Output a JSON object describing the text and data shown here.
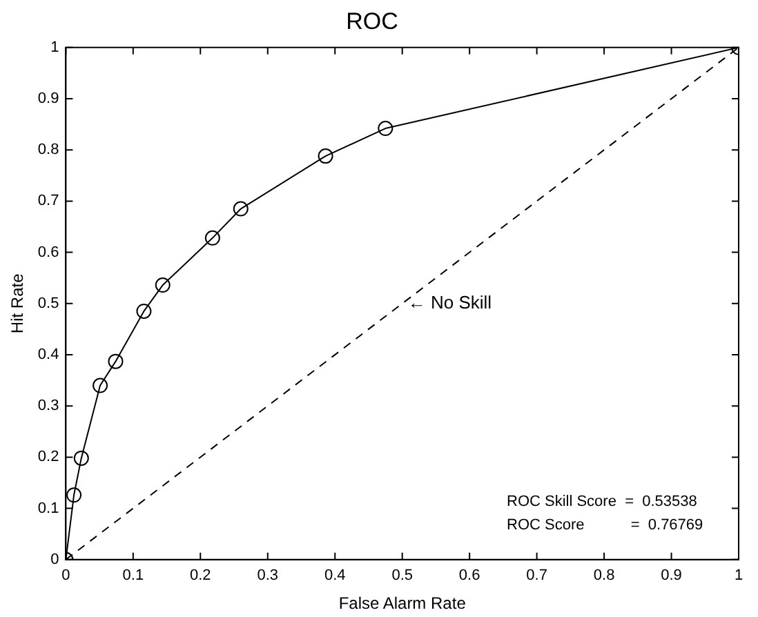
{
  "chart_data": {
    "type": "line",
    "title": "ROC",
    "xlabel": "False Alarm Rate",
    "ylabel": "Hit Rate",
    "xlim": [
      0,
      1
    ],
    "ylim": [
      0,
      1
    ],
    "xticks": [
      0,
      0.1,
      0.2,
      0.3,
      0.4,
      0.5,
      0.6,
      0.7,
      0.8,
      0.9,
      1
    ],
    "yticks": [
      0,
      0.1,
      0.2,
      0.3,
      0.4,
      0.5,
      0.6,
      0.7,
      0.8,
      0.9,
      1
    ],
    "grid": false,
    "legend": false,
    "series": [
      {
        "color": "#000000",
        "marker": "circle",
        "line_style": "solid",
        "x": [
          0,
          0.012,
          0.023,
          0.051,
          0.074,
          0.116,
          0.144,
          0.218,
          0.26,
          0.386,
          0.475,
          1
        ],
        "values": [
          0,
          0.126,
          0.198,
          0.34,
          0.387,
          0.485,
          0.536,
          0.628,
          0.685,
          0.788,
          0.842,
          1
        ]
      },
      {
        "color": "#000000",
        "marker": "none",
        "line_style": "dashed",
        "x": [
          0,
          1
        ],
        "values": [
          0,
          1
        ]
      }
    ],
    "annotations": [
      {
        "text": "← No Skill",
        "x": 0.5,
        "y": 0.5
      },
      "ROC Skill Score  =  0.53538",
      "ROC Score           =  0.76769"
    ]
  }
}
